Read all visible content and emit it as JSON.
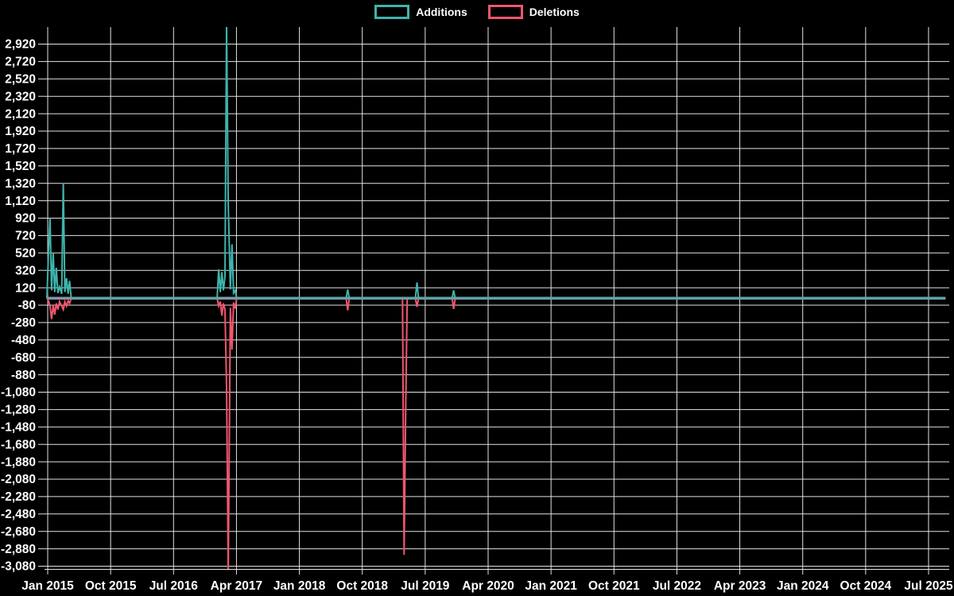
{
  "page": {
    "background": "#000000",
    "text_color": "#ffffff",
    "grid_color": "#e2e2e2"
  },
  "legend": {
    "items": [
      {
        "label": "Additions",
        "color": "#3eb4ac"
      },
      {
        "label": "Deletions",
        "color": "#f0566e"
      }
    ]
  },
  "chart_data": {
    "type": "line",
    "title": "",
    "xlabel": "",
    "ylabel": "",
    "grid": true,
    "legend_position": "top-center",
    "background": "#000000",
    "zero_baseline_color": "#7e99a7",
    "y_axis": {
      "min": -3080,
      "max": 2920,
      "step": 200,
      "tick_labels": [
        "2,920",
        "2,720",
        "2,520",
        "2,320",
        "2,120",
        "1,920",
        "1,720",
        "1,520",
        "1,320",
        "1,120",
        "920",
        "720",
        "520",
        "320",
        "120",
        "-80",
        "-280",
        "-480",
        "-680",
        "-880",
        "-1,080",
        "-1,280",
        "-1,480",
        "-1,680",
        "-1,880",
        "-2,080",
        "-2,280",
        "-2,480",
        "-2,680",
        "-2,880",
        "-3,080"
      ]
    },
    "x_axis": {
      "tick_labels": [
        "Jan 2015",
        "Oct 2015",
        "Jul 2016",
        "Apr 2017",
        "Jan 2018",
        "Oct 2018",
        "Jul 2019",
        "Apr 2020",
        "Jan 2021",
        "Oct 2021",
        "Jul 2022",
        "Apr 2023",
        "Jan 2024",
        "Oct 2024",
        "Jul 2025"
      ],
      "tick_interval_months": 9
    },
    "clipping_note": "largest 2017 spikes run off the visible scale (additions above 2,920; deletions below -3,080)",
    "series": [
      {
        "name": "Additions",
        "color": "#3eb4ac",
        "points": [
          [
            "2014-12-28",
            0
          ],
          [
            "2015-01-04",
            500
          ],
          [
            "2015-01-11",
            920
          ],
          [
            "2015-01-18",
            90
          ],
          [
            "2015-01-25",
            520
          ],
          [
            "2015-02-01",
            70
          ],
          [
            "2015-02-08",
            350
          ],
          [
            "2015-02-15",
            60
          ],
          [
            "2015-02-22",
            130
          ],
          [
            "2015-03-01",
            50
          ],
          [
            "2015-03-08",
            1320
          ],
          [
            "2015-03-15",
            70
          ],
          [
            "2015-03-22",
            230
          ],
          [
            "2015-03-29",
            50
          ],
          [
            "2015-04-05",
            200
          ],
          [
            "2015-04-12",
            0
          ],
          [
            "2017-01-08",
            0
          ],
          [
            "2017-01-15",
            330
          ],
          [
            "2017-01-22",
            70
          ],
          [
            "2017-01-29",
            300
          ],
          [
            "2017-02-05",
            90
          ],
          [
            "2017-02-12",
            250
          ],
          [
            "2017-02-19",
            3140
          ],
          [
            "2017-02-26",
            1080
          ],
          [
            "2017-03-05",
            100
          ],
          [
            "2017-03-12",
            620
          ],
          [
            "2017-03-19",
            60
          ],
          [
            "2017-03-26",
            90
          ],
          [
            "2017-04-02",
            0
          ],
          [
            "2018-07-22",
            0
          ],
          [
            "2018-07-29",
            100
          ],
          [
            "2018-08-05",
            0
          ],
          [
            "2019-03-24",
            0
          ],
          [
            "2019-03-31",
            0
          ],
          [
            "2019-04-07",
            0
          ],
          [
            "2019-04-14",
            0
          ],
          [
            "2019-05-19",
            0
          ],
          [
            "2019-05-26",
            180
          ],
          [
            "2019-06-02",
            0
          ],
          [
            "2019-10-27",
            0
          ],
          [
            "2019-11-03",
            90
          ],
          [
            "2019-11-10",
            0
          ],
          [
            "2025-09-14",
            0
          ]
        ]
      },
      {
        "name": "Deletions",
        "color": "#f0566e",
        "points": [
          [
            "2014-12-28",
            0
          ],
          [
            "2015-01-04",
            -30
          ],
          [
            "2015-01-11",
            -90
          ],
          [
            "2015-01-18",
            -240
          ],
          [
            "2015-01-25",
            -80
          ],
          [
            "2015-02-01",
            -190
          ],
          [
            "2015-02-08",
            -60
          ],
          [
            "2015-02-15",
            -130
          ],
          [
            "2015-02-22",
            -40
          ],
          [
            "2015-03-01",
            -90
          ],
          [
            "2015-03-08",
            -130
          ],
          [
            "2015-03-15",
            -40
          ],
          [
            "2015-03-22",
            -90
          ],
          [
            "2015-03-29",
            -30
          ],
          [
            "2015-04-05",
            -60
          ],
          [
            "2015-04-12",
            0
          ],
          [
            "2017-01-08",
            0
          ],
          [
            "2017-01-15",
            -90
          ],
          [
            "2017-01-22",
            -40
          ],
          [
            "2017-01-29",
            -200
          ],
          [
            "2017-02-05",
            -60
          ],
          [
            "2017-02-12",
            -130
          ],
          [
            "2017-02-19",
            -1020
          ],
          [
            "2017-02-26",
            -3120
          ],
          [
            "2017-03-05",
            -110
          ],
          [
            "2017-03-12",
            -590
          ],
          [
            "2017-03-19",
            -50
          ],
          [
            "2017-03-26",
            -120
          ],
          [
            "2017-04-02",
            0
          ],
          [
            "2018-07-22",
            0
          ],
          [
            "2018-07-29",
            -140
          ],
          [
            "2018-08-05",
            0
          ],
          [
            "2019-03-24",
            0
          ],
          [
            "2019-03-31",
            -2950
          ],
          [
            "2019-04-07",
            -1360
          ],
          [
            "2019-04-14",
            0
          ],
          [
            "2019-05-19",
            0
          ],
          [
            "2019-05-26",
            -100
          ],
          [
            "2019-06-02",
            0
          ],
          [
            "2019-10-27",
            0
          ],
          [
            "2019-11-03",
            -125
          ],
          [
            "2019-11-10",
            0
          ],
          [
            "2025-09-14",
            0
          ]
        ]
      }
    ]
  }
}
